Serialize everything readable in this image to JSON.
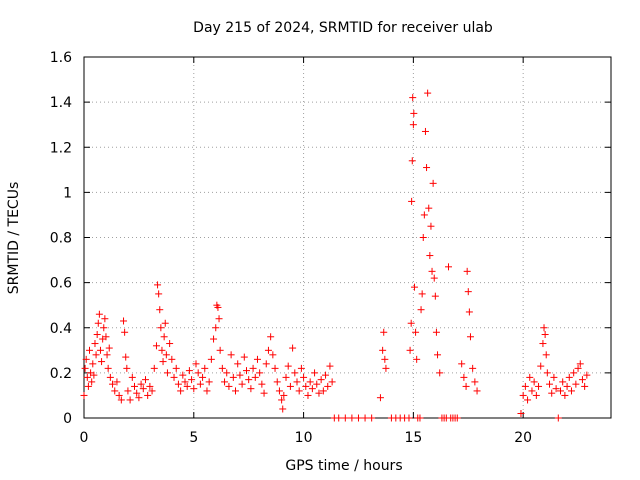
{
  "chart_data": {
    "type": "scatter",
    "title": "Day 215 of 2024, SRMTID for receiver ulab",
    "xlabel": "GPS time / hours",
    "ylabel": "SRMTID / TECUs",
    "xlim": [
      0,
      24
    ],
    "ylim": [
      0,
      1.6
    ],
    "xticks": [
      0,
      5,
      10,
      15,
      20
    ],
    "yticks": [
      0,
      0.2,
      0.4,
      0.6,
      0.8,
      1,
      1.2,
      1.4,
      1.6
    ],
    "xtick_labels": [
      "0",
      "5",
      "10",
      "15",
      "20"
    ],
    "ytick_labels": [
      "0",
      "0.2",
      "0.4",
      "0.6",
      "0.8",
      "1",
      "1.2",
      "1.4",
      "1.6"
    ],
    "grid": true,
    "marker": "plus",
    "color": "#ff0000",
    "series": [
      {
        "name": "SRMTID",
        "points": [
          [
            0.0,
            0.1
          ],
          [
            0.05,
            0.22
          ],
          [
            0.1,
            0.26
          ],
          [
            0.15,
            0.18
          ],
          [
            0.2,
            0.14
          ],
          [
            0.25,
            0.3
          ],
          [
            0.3,
            0.2
          ],
          [
            0.35,
            0.16
          ],
          [
            0.4,
            0.24
          ],
          [
            0.45,
            0.19
          ],
          [
            0.5,
            0.33
          ],
          [
            0.55,
            0.28
          ],
          [
            0.6,
            0.37
          ],
          [
            0.65,
            0.42
          ],
          [
            0.7,
            0.46
          ],
          [
            0.75,
            0.3
          ],
          [
            0.8,
            0.25
          ],
          [
            0.85,
            0.35
          ],
          [
            0.9,
            0.4
          ],
          [
            0.95,
            0.44
          ],
          [
            1.0,
            0.36
          ],
          [
            1.05,
            0.28
          ],
          [
            1.1,
            0.22
          ],
          [
            1.15,
            0.31
          ],
          [
            1.2,
            0.18
          ],
          [
            1.3,
            0.15
          ],
          [
            1.4,
            0.12
          ],
          [
            1.5,
            0.16
          ],
          [
            1.6,
            0.1
          ],
          [
            1.7,
            0.08
          ],
          [
            1.8,
            0.43
          ],
          [
            1.85,
            0.38
          ],
          [
            1.9,
            0.27
          ],
          [
            1.95,
            0.22
          ],
          [
            2.0,
            0.12
          ],
          [
            2.1,
            0.08
          ],
          [
            2.2,
            0.18
          ],
          [
            2.3,
            0.14
          ],
          [
            2.4,
            0.11
          ],
          [
            2.5,
            0.09
          ],
          [
            2.6,
            0.15
          ],
          [
            2.7,
            0.13
          ],
          [
            2.8,
            0.17
          ],
          [
            2.9,
            0.1
          ],
          [
            3.0,
            0.14
          ],
          [
            3.1,
            0.12
          ],
          [
            3.2,
            0.22
          ],
          [
            3.3,
            0.32
          ],
          [
            3.35,
            0.59
          ],
          [
            3.4,
            0.55
          ],
          [
            3.45,
            0.48
          ],
          [
            3.5,
            0.4
          ],
          [
            3.55,
            0.3
          ],
          [
            3.6,
            0.25
          ],
          [
            3.65,
            0.36
          ],
          [
            3.7,
            0.42
          ],
          [
            3.75,
            0.28
          ],
          [
            3.8,
            0.2
          ],
          [
            3.9,
            0.33
          ],
          [
            4.0,
            0.26
          ],
          [
            4.1,
            0.18
          ],
          [
            4.2,
            0.22
          ],
          [
            4.3,
            0.15
          ],
          [
            4.4,
            0.12
          ],
          [
            4.5,
            0.19
          ],
          [
            4.6,
            0.16
          ],
          [
            4.7,
            0.14
          ],
          [
            4.8,
            0.21
          ],
          [
            4.9,
            0.17
          ],
          [
            5.0,
            0.13
          ],
          [
            5.1,
            0.24
          ],
          [
            5.2,
            0.2
          ],
          [
            5.3,
            0.15
          ],
          [
            5.4,
            0.18
          ],
          [
            5.5,
            0.22
          ],
          [
            5.6,
            0.12
          ],
          [
            5.7,
            0.16
          ],
          [
            5.8,
            0.26
          ],
          [
            5.9,
            0.35
          ],
          [
            6.0,
            0.4
          ],
          [
            6.05,
            0.5
          ],
          [
            6.1,
            0.49
          ],
          [
            6.15,
            0.44
          ],
          [
            6.2,
            0.3
          ],
          [
            6.3,
            0.22
          ],
          [
            6.4,
            0.16
          ],
          [
            6.5,
            0.2
          ],
          [
            6.6,
            0.14
          ],
          [
            6.7,
            0.28
          ],
          [
            6.8,
            0.18
          ],
          [
            6.9,
            0.12
          ],
          [
            7.0,
            0.24
          ],
          [
            7.1,
            0.19
          ],
          [
            7.2,
            0.15
          ],
          [
            7.3,
            0.27
          ],
          [
            7.4,
            0.21
          ],
          [
            7.5,
            0.17
          ],
          [
            7.6,
            0.13
          ],
          [
            7.7,
            0.22
          ],
          [
            7.8,
            0.18
          ],
          [
            7.9,
            0.26
          ],
          [
            8.0,
            0.2
          ],
          [
            8.1,
            0.15
          ],
          [
            8.2,
            0.11
          ],
          [
            8.3,
            0.24
          ],
          [
            8.4,
            0.3
          ],
          [
            8.5,
            0.36
          ],
          [
            8.6,
            0.28
          ],
          [
            8.7,
            0.22
          ],
          [
            8.8,
            0.16
          ],
          [
            8.9,
            0.12
          ],
          [
            9.0,
            0.08
          ],
          [
            9.05,
            0.04
          ],
          [
            9.1,
            0.1
          ],
          [
            9.2,
            0.18
          ],
          [
            9.3,
            0.23
          ],
          [
            9.4,
            0.14
          ],
          [
            9.5,
            0.31
          ],
          [
            9.6,
            0.2
          ],
          [
            9.7,
            0.16
          ],
          [
            9.8,
            0.12
          ],
          [
            9.9,
            0.22
          ],
          [
            10.0,
            0.18
          ],
          [
            10.1,
            0.14
          ],
          [
            10.2,
            0.1
          ],
          [
            10.3,
            0.16
          ],
          [
            10.4,
            0.13
          ],
          [
            10.5,
            0.2
          ],
          [
            10.6,
            0.15
          ],
          [
            10.7,
            0.11
          ],
          [
            10.8,
            0.17
          ],
          [
            10.9,
            0.12
          ],
          [
            11.0,
            0.19
          ],
          [
            11.1,
            0.14
          ],
          [
            11.2,
            0.23
          ],
          [
            11.3,
            0.16
          ],
          [
            11.4,
            0.0
          ],
          [
            11.6,
            0.0
          ],
          [
            11.9,
            0.0
          ],
          [
            12.2,
            0.0
          ],
          [
            12.5,
            0.0
          ],
          [
            12.8,
            0.0
          ],
          [
            13.1,
            0.0
          ],
          [
            13.5,
            0.09
          ],
          [
            13.6,
            0.3
          ],
          [
            13.65,
            0.38
          ],
          [
            13.7,
            0.26
          ],
          [
            13.75,
            0.22
          ],
          [
            14.0,
            0.0
          ],
          [
            14.2,
            0.0
          ],
          [
            14.4,
            0.0
          ],
          [
            14.6,
            0.0
          ],
          [
            14.8,
            0.0
          ],
          [
            14.85,
            0.3
          ],
          [
            14.9,
            0.42
          ],
          [
            14.92,
            0.96
          ],
          [
            14.95,
            1.14
          ],
          [
            14.97,
            1.42
          ],
          [
            15.0,
            1.3
          ],
          [
            15.02,
            1.35
          ],
          [
            15.05,
            0.58
          ],
          [
            15.1,
            0.38
          ],
          [
            15.15,
            0.26
          ],
          [
            15.2,
            0.0
          ],
          [
            15.3,
            0.0
          ],
          [
            15.35,
            0.48
          ],
          [
            15.4,
            0.55
          ],
          [
            15.45,
            0.8
          ],
          [
            15.5,
            0.9
          ],
          [
            15.55,
            1.27
          ],
          [
            15.6,
            1.11
          ],
          [
            15.65,
            1.44
          ],
          [
            15.7,
            0.93
          ],
          [
            15.75,
            0.72
          ],
          [
            15.8,
            0.85
          ],
          [
            15.85,
            0.65
          ],
          [
            15.9,
            1.04
          ],
          [
            15.95,
            0.62
          ],
          [
            16.0,
            0.54
          ],
          [
            16.05,
            0.38
          ],
          [
            16.1,
            0.28
          ],
          [
            16.2,
            0.2
          ],
          [
            16.3,
            0.0
          ],
          [
            16.4,
            0.0
          ],
          [
            16.5,
            0.0
          ],
          [
            16.6,
            0.67
          ],
          [
            16.7,
            0.0
          ],
          [
            16.8,
            0.0
          ],
          [
            16.9,
            0.0
          ],
          [
            17.0,
            0.0
          ],
          [
            17.2,
            0.24
          ],
          [
            17.3,
            0.18
          ],
          [
            17.4,
            0.14
          ],
          [
            17.45,
            0.65
          ],
          [
            17.5,
            0.56
          ],
          [
            17.55,
            0.47
          ],
          [
            17.6,
            0.36
          ],
          [
            17.7,
            0.22
          ],
          [
            17.8,
            0.16
          ],
          [
            17.9,
            0.12
          ],
          [
            19.9,
            0.02
          ],
          [
            20.0,
            0.1
          ],
          [
            20.1,
            0.14
          ],
          [
            20.2,
            0.08
          ],
          [
            20.3,
            0.18
          ],
          [
            20.4,
            0.12
          ],
          [
            20.5,
            0.16
          ],
          [
            20.6,
            0.1
          ],
          [
            20.7,
            0.14
          ],
          [
            20.8,
            0.23
          ],
          [
            20.9,
            0.33
          ],
          [
            20.95,
            0.4
          ],
          [
            21.0,
            0.37
          ],
          [
            21.05,
            0.28
          ],
          [
            21.1,
            0.2
          ],
          [
            21.2,
            0.15
          ],
          [
            21.3,
            0.11
          ],
          [
            21.4,
            0.18
          ],
          [
            21.5,
            0.13
          ],
          [
            21.6,
            0.0
          ],
          [
            21.7,
            0.12
          ],
          [
            21.8,
            0.16
          ],
          [
            21.9,
            0.1
          ],
          [
            22.0,
            0.14
          ],
          [
            22.1,
            0.18
          ],
          [
            22.2,
            0.12
          ],
          [
            22.3,
            0.2
          ],
          [
            22.4,
            0.15
          ],
          [
            22.5,
            0.22
          ],
          [
            22.6,
            0.24
          ],
          [
            22.7,
            0.17
          ],
          [
            22.8,
            0.14
          ],
          [
            22.9,
            0.19
          ]
        ]
      }
    ]
  }
}
